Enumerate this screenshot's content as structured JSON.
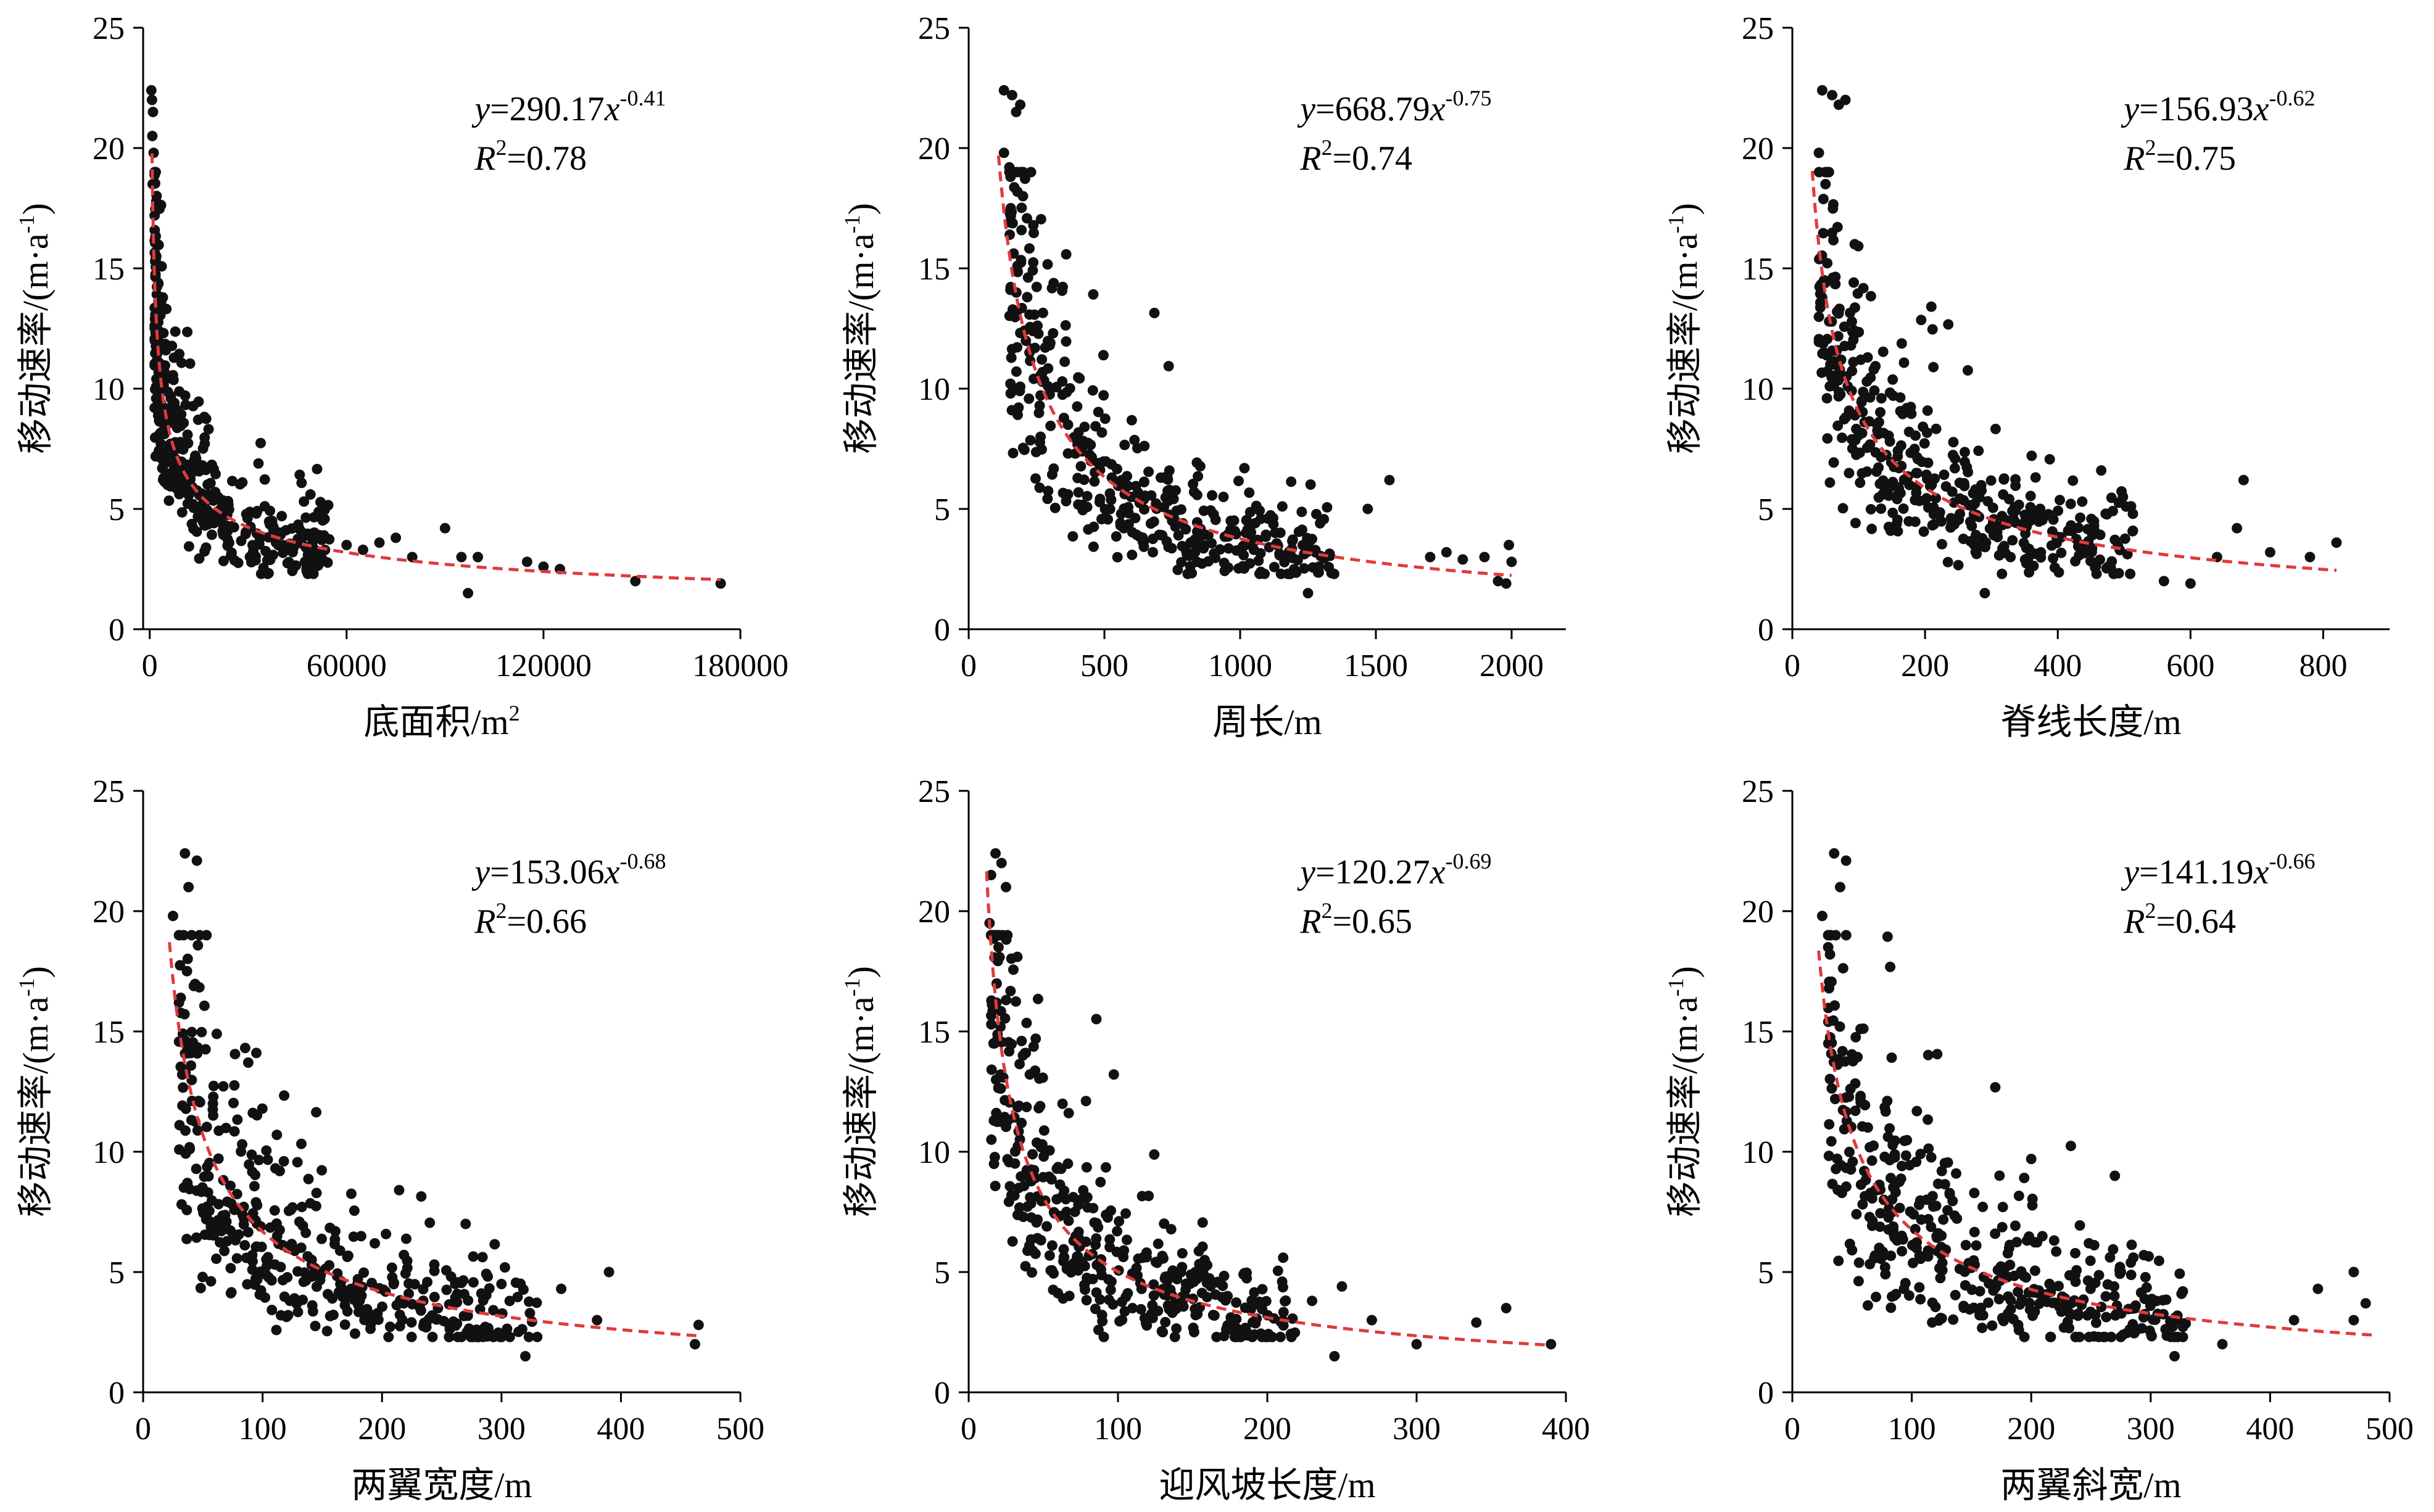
{
  "figure": {
    "ylabel": "移动速率/(m·a",
    "ylabel_sup": "-1",
    "ylabel_close": ")",
    "trend_color": "#e03a3a",
    "point_color": "#111111"
  },
  "chart_data": [
    {
      "type": "scatter",
      "xlabel": "底面积/m",
      "xlabel_sup": "2",
      "ylabel": "移动速率/(m·a-1)",
      "xlim": [
        -2000,
        180000
      ],
      "ylim": [
        0,
        25
      ],
      "xticks": [
        {
          "v": 0,
          "label": "0"
        },
        {
          "v": 60000,
          "label": "60000"
        },
        {
          "v": 120000,
          "label": "120000"
        },
        {
          "v": 180000,
          "label": "180000"
        }
      ],
      "yticks": [
        {
          "v": 0,
          "label": "0"
        },
        {
          "v": 5,
          "label": "5"
        },
        {
          "v": 10,
          "label": "10"
        },
        {
          "v": 15,
          "label": "15"
        },
        {
          "v": 20,
          "label": "20"
        },
        {
          "v": 25,
          "label": "25"
        }
      ],
      "fit": {
        "a": 290.17,
        "b": -0.41,
        "x_start": 700,
        "x_end": 174000
      },
      "eq_coef": "290.17",
      "eq_exp": "-0.41",
      "r2": "0.78",
      "spread": 0.25,
      "points": [
        [
          500,
          22.4
        ],
        [
          700,
          22.0
        ],
        [
          1000,
          21.5
        ],
        [
          800,
          20.5
        ],
        [
          1200,
          19.8
        ],
        [
          900,
          18.5
        ],
        [
          1500,
          17.2
        ],
        [
          2000,
          15.5
        ],
        [
          60000,
          3.5
        ],
        [
          65000,
          3.3
        ],
        [
          70000,
          3.6
        ],
        [
          75000,
          3.8
        ],
        [
          80000,
          3.0
        ],
        [
          90000,
          4.2
        ],
        [
          95000,
          3.0
        ],
        [
          100000,
          3.0
        ],
        [
          97000,
          1.5
        ],
        [
          115000,
          2.8
        ],
        [
          120000,
          2.6
        ],
        [
          125000,
          2.5
        ],
        [
          148000,
          2.0
        ],
        [
          174000,
          1.9
        ]
      ],
      "cluster": {
        "n": 420,
        "x_min": 1500,
        "x_max": 55000,
        "skew": 2.2
      }
    },
    {
      "type": "scatter",
      "xlabel": "周长/m",
      "xlabel_sup": "",
      "ylabel": "移动速率/(m·a-1)",
      "xlim": [
        0,
        2200
      ],
      "ylim": [
        0,
        25
      ],
      "xticks": [
        {
          "v": 0,
          "label": "0"
        },
        {
          "v": 500,
          "label": "500"
        },
        {
          "v": 1000,
          "label": "1000"
        },
        {
          "v": 1500,
          "label": "1500"
        },
        {
          "v": 2000,
          "label": "2000"
        }
      ],
      "yticks": [
        {
          "v": 0,
          "label": "0"
        },
        {
          "v": 5,
          "label": "5"
        },
        {
          "v": 10,
          "label": "10"
        },
        {
          "v": 15,
          "label": "15"
        },
        {
          "v": 20,
          "label": "20"
        },
        {
          "v": 25,
          "label": "25"
        }
      ],
      "fit": {
        "a": 668.79,
        "b": -0.75,
        "x_start": 110,
        "x_end": 2000
      },
      "eq_coef": "668.79",
      "eq_exp": "-0.75",
      "r2": "0.74",
      "spread": 0.3,
      "points": [
        [
          130,
          22.4
        ],
        [
          160,
          22.2
        ],
        [
          175,
          21.5
        ],
        [
          190,
          21.8
        ],
        [
          130,
          19.8
        ],
        [
          150,
          19.2
        ],
        [
          200,
          18.0
        ],
        [
          1250,
          1.5
        ],
        [
          1550,
          6.2
        ],
        [
          1470,
          5.0
        ],
        [
          1700,
          3.0
        ],
        [
          1760,
          3.2
        ],
        [
          1950,
          2.0
        ],
        [
          1990,
          3.5
        ],
        [
          2000,
          2.8
        ],
        [
          1900,
          3.0
        ],
        [
          1980,
          1.9
        ],
        [
          1820,
          2.9
        ]
      ],
      "cluster": {
        "n": 420,
        "x_min": 150,
        "x_max": 1350,
        "skew": 1.5
      }
    },
    {
      "type": "scatter",
      "xlabel": "脊线长度/m",
      "xlabel_sup": "",
      "ylabel": "移动速率/(m·a-1)",
      "xlim": [
        0,
        900
      ],
      "ylim": [
        0,
        25
      ],
      "xticks": [
        {
          "v": 0,
          "label": "0"
        },
        {
          "v": 200,
          "label": "200"
        },
        {
          "v": 400,
          "label": "400"
        },
        {
          "v": 600,
          "label": "600"
        },
        {
          "v": 800,
          "label": "800"
        }
      ],
      "yticks": [
        {
          "v": 0,
          "label": "0"
        },
        {
          "v": 5,
          "label": "5"
        },
        {
          "v": 10,
          "label": "10"
        },
        {
          "v": 15,
          "label": "15"
        },
        {
          "v": 20,
          "label": "20"
        },
        {
          "v": 25,
          "label": "25"
        }
      ],
      "fit": {
        "a": 156.93,
        "b": -0.62,
        "x_start": 30,
        "x_end": 820
      },
      "eq_coef": "156.93",
      "eq_exp": "-0.62",
      "r2": "0.75",
      "spread": 0.3,
      "points": [
        [
          45,
          22.4
        ],
        [
          60,
          22.2
        ],
        [
          70,
          21.8
        ],
        [
          80,
          22.0
        ],
        [
          40,
          19.8
        ],
        [
          50,
          18.5
        ],
        [
          290,
          1.5
        ],
        [
          560,
          2.0
        ],
        [
          600,
          1.9
        ],
        [
          680,
          6.2
        ],
        [
          670,
          4.2
        ],
        [
          720,
          3.2
        ],
        [
          780,
          3.0
        ],
        [
          820,
          3.6
        ],
        [
          640,
          3.0
        ]
      ],
      "cluster": {
        "n": 420,
        "x_min": 40,
        "x_max": 520,
        "skew": 1.5
      }
    },
    {
      "type": "scatter",
      "xlabel": "两翼宽度/m",
      "xlabel_sup": "",
      "ylabel": "移动速率/(m·a-1)",
      "xlim": [
        0,
        500
      ],
      "ylim": [
        0,
        25
      ],
      "xticks": [
        {
          "v": 0,
          "label": "0"
        },
        {
          "v": 100,
          "label": "100"
        },
        {
          "v": 200,
          "label": "200"
        },
        {
          "v": 300,
          "label": "300"
        },
        {
          "v": 400,
          "label": "400"
        },
        {
          "v": 500,
          "label": "500"
        }
      ],
      "yticks": [
        {
          "v": 0,
          "label": "0"
        },
        {
          "v": 5,
          "label": "5"
        },
        {
          "v": 10,
          "label": "10"
        },
        {
          "v": 15,
          "label": "15"
        },
        {
          "v": 20,
          "label": "20"
        },
        {
          "v": 25,
          "label": "25"
        }
      ],
      "fit": {
        "a": 153.06,
        "b": -0.68,
        "x_start": 22,
        "x_end": 465
      },
      "eq_coef": "153.06",
      "eq_exp": "-0.68",
      "r2": "0.66",
      "spread": 0.33,
      "points": [
        [
          35,
          22.4
        ],
        [
          45,
          22.1
        ],
        [
          38,
          21.0
        ],
        [
          25,
          19.8
        ],
        [
          30,
          16.2
        ],
        [
          320,
          1.5
        ],
        [
          390,
          5.0
        ],
        [
          380,
          3.0
        ],
        [
          350,
          4.3
        ],
        [
          462,
          2.0
        ],
        [
          465,
          2.8
        ],
        [
          300,
          4.5
        ],
        [
          270,
          7.0
        ]
      ],
      "cluster": {
        "n": 430,
        "x_min": 30,
        "x_max": 330,
        "skew": 1.4
      }
    },
    {
      "type": "scatter",
      "xlabel": "迎风坡长度/m",
      "xlabel_sup": "",
      "ylabel": "移动速率/(m·a-1)",
      "xlim": [
        0,
        400
      ],
      "ylim": [
        0,
        25
      ],
      "xticks": [
        {
          "v": 0,
          "label": "0"
        },
        {
          "v": 100,
          "label": "100"
        },
        {
          "v": 200,
          "label": "200"
        },
        {
          "v": 300,
          "label": "300"
        },
        {
          "v": 400,
          "label": "400"
        }
      ],
      "yticks": [
        {
          "v": 0,
          "label": "0"
        },
        {
          "v": 5,
          "label": "5"
        },
        {
          "v": 10,
          "label": "10"
        },
        {
          "v": 15,
          "label": "15"
        },
        {
          "v": 20,
          "label": "20"
        },
        {
          "v": 25,
          "label": "25"
        }
      ],
      "fit": {
        "a": 120.27,
        "b": -0.69,
        "x_start": 12,
        "x_end": 390
      },
      "eq_coef": "120.27",
      "eq_exp": "-0.69",
      "r2": "0.65",
      "spread": 0.33,
      "points": [
        [
          18,
          22.4
        ],
        [
          22,
          22.0
        ],
        [
          15,
          21.5
        ],
        [
          25,
          21.0
        ],
        [
          14,
          19.5
        ],
        [
          20,
          18.5
        ],
        [
          245,
          1.5
        ],
        [
          300,
          2.0
        ],
        [
          340,
          2.9
        ],
        [
          360,
          3.5
        ],
        [
          390,
          2.0
        ],
        [
          250,
          4.4
        ],
        [
          230,
          3.8
        ],
        [
          270,
          3.0
        ]
      ],
      "cluster": {
        "n": 430,
        "x_min": 15,
        "x_max": 220,
        "skew": 1.5
      }
    },
    {
      "type": "scatter",
      "xlabel": "两翼斜宽/m",
      "xlabel_sup": "",
      "ylabel": "移动速率/(m·a-1)",
      "xlim": [
        0,
        500
      ],
      "ylim": [
        0,
        25
      ],
      "xticks": [
        {
          "v": 0,
          "label": "0"
        },
        {
          "v": 100,
          "label": "100"
        },
        {
          "v": 200,
          "label": "200"
        },
        {
          "v": 300,
          "label": "300"
        },
        {
          "v": 400,
          "label": "400"
        },
        {
          "v": 500,
          "label": "500"
        }
      ],
      "yticks": [
        {
          "v": 0,
          "label": "0"
        },
        {
          "v": 5,
          "label": "5"
        },
        {
          "v": 10,
          "label": "10"
        },
        {
          "v": 15,
          "label": "15"
        },
        {
          "v": 20,
          "label": "20"
        },
        {
          "v": 25,
          "label": "25"
        }
      ],
      "fit": {
        "a": 141.19,
        "b": -0.66,
        "x_start": 22,
        "x_end": 490
      },
      "eq_coef": "141.19",
      "eq_exp": "-0.66",
      "r2": "0.64",
      "spread": 0.33,
      "points": [
        [
          35,
          22.4
        ],
        [
          45,
          22.1
        ],
        [
          40,
          21.0
        ],
        [
          25,
          19.8
        ],
        [
          30,
          18.5
        ],
        [
          320,
          1.5
        ],
        [
          360,
          2.0
        ],
        [
          420,
          3.0
        ],
        [
          440,
          4.3
        ],
        [
          470,
          5.0
        ],
        [
          480,
          3.7
        ],
        [
          470,
          3.0
        ],
        [
          270,
          9.0
        ],
        [
          200,
          9.7
        ]
      ],
      "cluster": {
        "n": 430,
        "x_min": 30,
        "x_max": 330,
        "skew": 1.4
      }
    }
  ]
}
